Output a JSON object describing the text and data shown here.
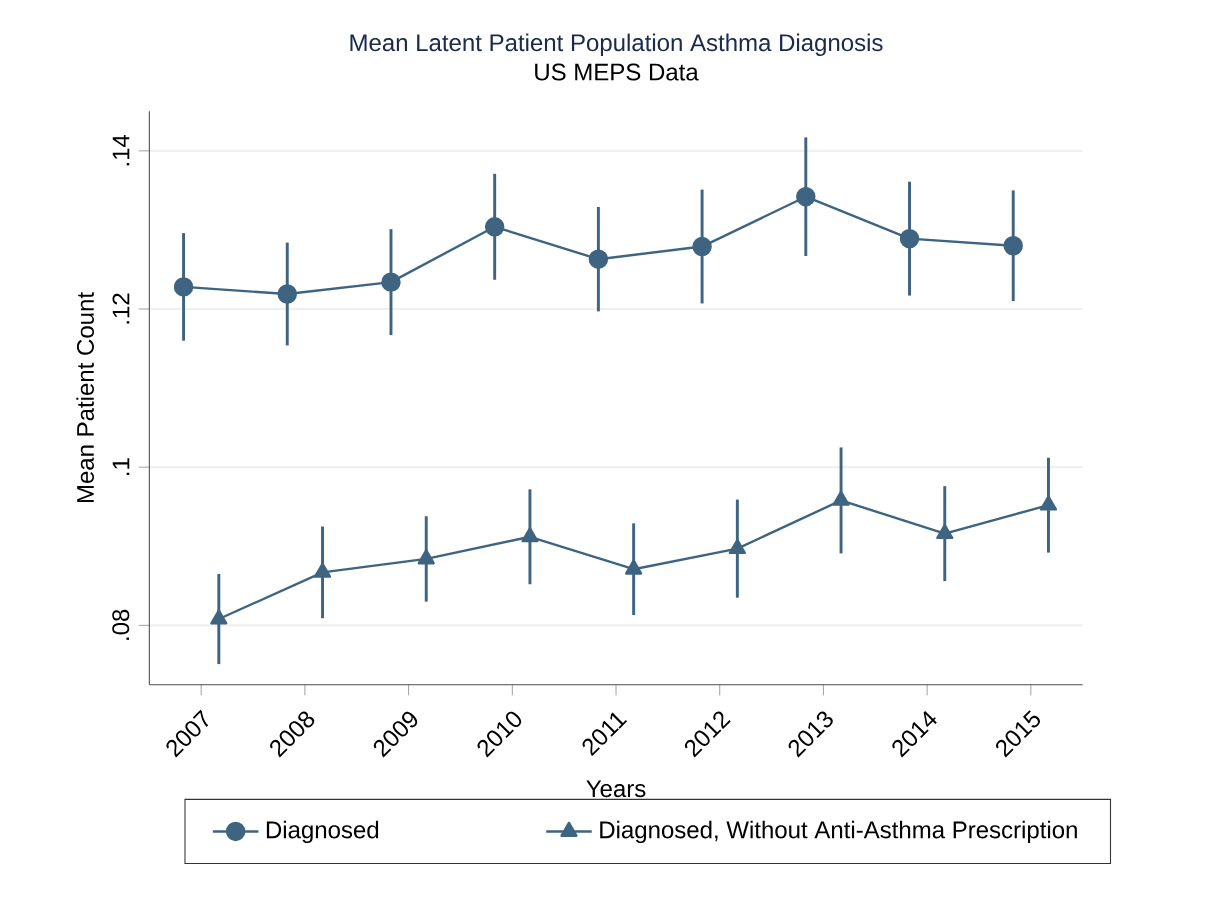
{
  "chart_data": {
    "type": "line",
    "title": "Mean Latent Patient Population Asthma Diagnosis",
    "subtitle": "US MEPS Data",
    "xlabel": "Years",
    "ylabel": "Mean Patient Count",
    "xlim": [
      2006.5,
      2015.5
    ],
    "xticks": [
      2007,
      2008,
      2009,
      2010,
      2011,
      2012,
      2013,
      2014,
      2015
    ],
    "ylim": [
      0.0725,
      0.145
    ],
    "yticks": [
      {
        "value": 0.08,
        "label": ".08"
      },
      {
        "value": 0.1,
        "label": ".1"
      },
      {
        "value": 0.12,
        "label": ".12"
      },
      {
        "value": 0.14,
        "label": ".14"
      }
    ],
    "grid": "y",
    "legend": "bottom",
    "line_style": "solid",
    "series": [
      {
        "name": "Diagnosed",
        "color": "#3e6481",
        "marker": "circle",
        "x": [
          2006.83,
          2007.83,
          2008.83,
          2009.83,
          2010.83,
          2011.83,
          2012.83,
          2013.83,
          2014.83
        ],
        "values": [
          0.1228,
          0.1219,
          0.1234,
          0.1304,
          0.1263,
          0.1279,
          0.1342,
          0.1289,
          0.128
        ],
        "errors": [
          0.0068,
          0.0065,
          0.0067,
          0.0067,
          0.0066,
          0.0072,
          0.0075,
          0.0072,
          0.007
        ]
      },
      {
        "name": "Diagnosed, Without Anti-Asthma Prescription",
        "color": "#3e6481",
        "marker": "triangle",
        "x": [
          2007.17,
          2008.17,
          2009.17,
          2010.17,
          2011.17,
          2012.17,
          2013.17,
          2014.17,
          2015.17
        ],
        "values": [
          0.0808,
          0.0867,
          0.0884,
          0.0912,
          0.0871,
          0.0897,
          0.0958,
          0.0916,
          0.0952
        ],
        "errors": [
          0.0057,
          0.0058,
          0.0054,
          0.006,
          0.0058,
          0.0062,
          0.0067,
          0.006,
          0.006
        ]
      }
    ]
  }
}
